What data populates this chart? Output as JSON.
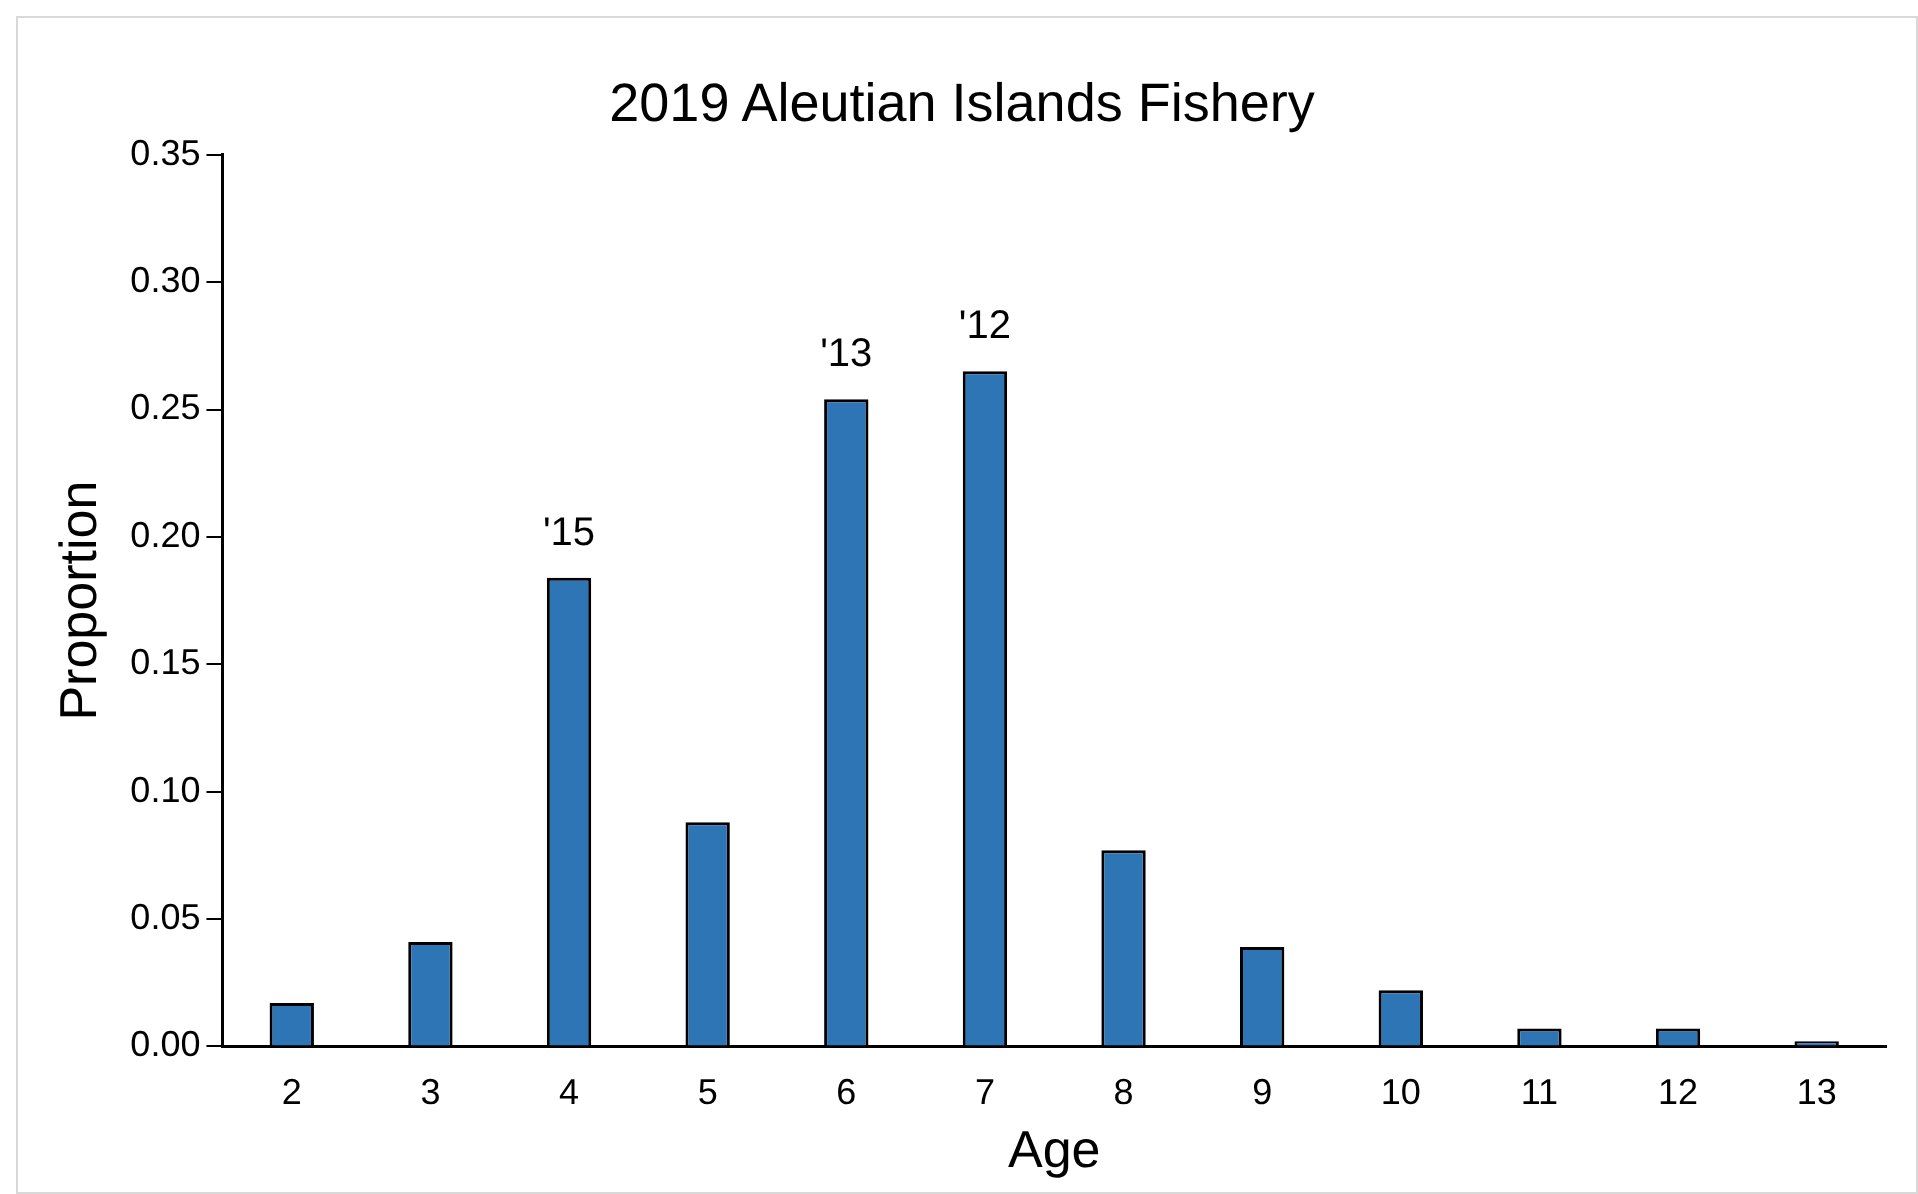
{
  "chart_data": {
    "type": "bar",
    "title": "2019 Aleutian Islands Fishery",
    "xlabel": "Age",
    "ylabel": "Proportion",
    "categories": [
      "2",
      "3",
      "4",
      "5",
      "6",
      "7",
      "8",
      "9",
      "10",
      "11",
      "12",
      "13"
    ],
    "values": [
      0.017,
      0.041,
      0.184,
      0.088,
      0.254,
      0.265,
      0.077,
      0.039,
      0.022,
      0.007,
      0.007,
      0.002
    ],
    "color": "#2e75b6",
    "ylim": [
      0,
      0.35
    ],
    "yticks": [
      {
        "value": 0,
        "label": "0.00"
      },
      {
        "value": 0.05,
        "label": "0.05"
      },
      {
        "value": 0.1,
        "label": "0.10"
      },
      {
        "value": 0.15,
        "label": "0.15"
      },
      {
        "value": 0.2,
        "label": "0.20"
      },
      {
        "value": 0.25,
        "label": "0.25"
      },
      {
        "value": 0.3,
        "label": "0.30"
      },
      {
        "value": 0.35,
        "label": "0.35"
      }
    ],
    "grid": false,
    "legend": false,
    "annotations": [
      {
        "text": "'15",
        "x": "4",
        "y": 0.184
      },
      {
        "text": "'13",
        "x": "6",
        "y": 0.254
      },
      {
        "text": "'12",
        "x": "7",
        "y": 0.265
      }
    ]
  }
}
